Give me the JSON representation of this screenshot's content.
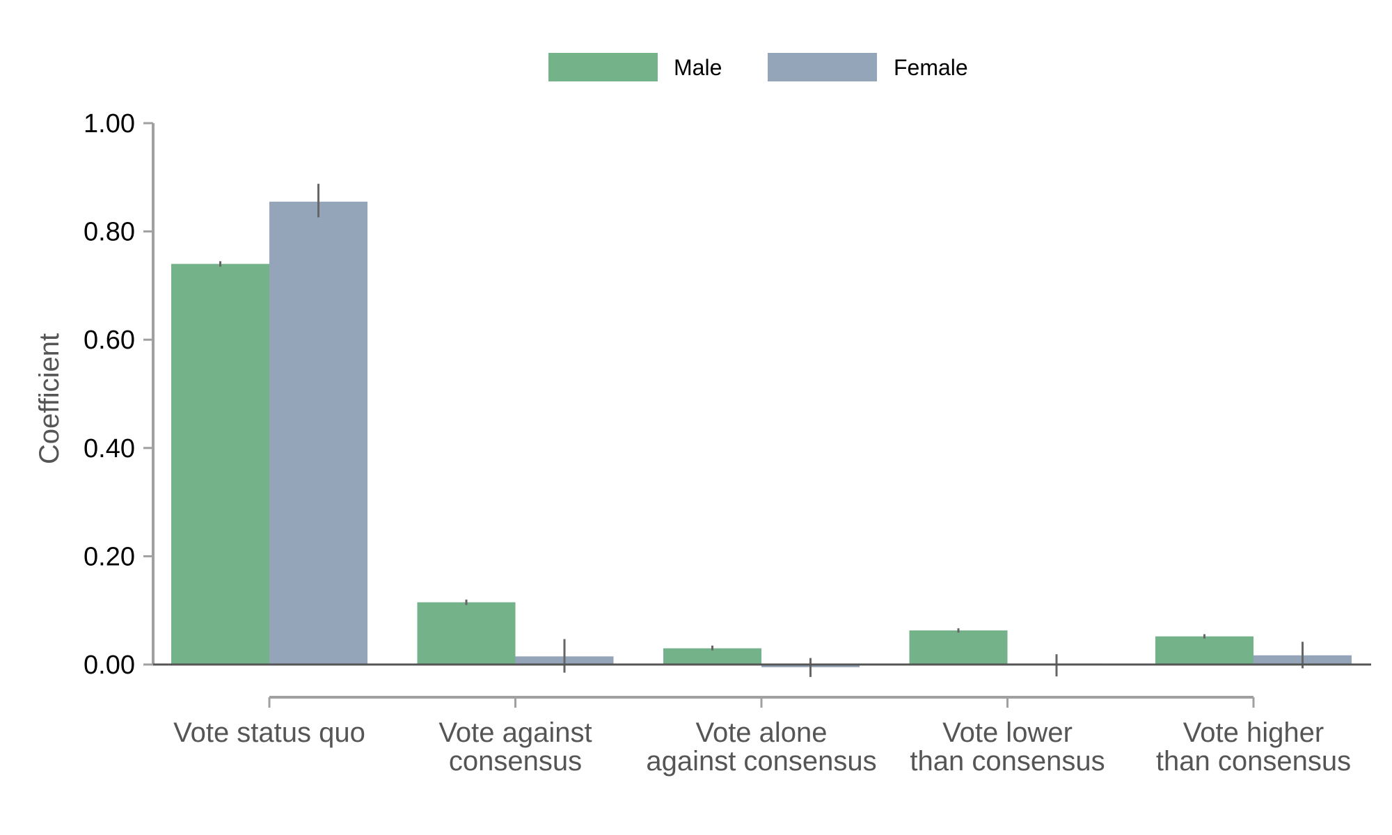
{
  "chart_data": {
    "type": "bar",
    "title": "",
    "xlabel": "",
    "ylabel": "Coefficient",
    "ylim": [
      0,
      1
    ],
    "yticks": [
      "0.00",
      "0.20",
      "0.40",
      "0.60",
      "0.80",
      "1.00"
    ],
    "grid": false,
    "legend_position": "top-center",
    "categories": [
      [
        "Vote status quo"
      ],
      [
        "Vote against",
        "consensus"
      ],
      [
        "Vote alone",
        "against consensus"
      ],
      [
        "Vote lower",
        "than consensus"
      ],
      [
        "Vote higher",
        "than consensus"
      ]
    ],
    "series": [
      {
        "name": "Male",
        "color": "#74b38a",
        "values": [
          0.74,
          0.115,
          0.03,
          0.063,
          0.052
        ],
        "ci_low": [
          0.735,
          0.11,
          0.026,
          0.059,
          0.048
        ],
        "ci_high": [
          0.745,
          0.12,
          0.035,
          0.067,
          0.056
        ]
      },
      {
        "name": "Female",
        "color": "#94a5ba",
        "values": [
          0.855,
          0.015,
          -0.005,
          0.002,
          0.017
        ],
        "ci_low": [
          0.826,
          -0.015,
          -0.023,
          -0.022,
          -0.007
        ],
        "ci_high": [
          0.888,
          0.047,
          0.012,
          0.019,
          0.042
        ]
      }
    ]
  }
}
